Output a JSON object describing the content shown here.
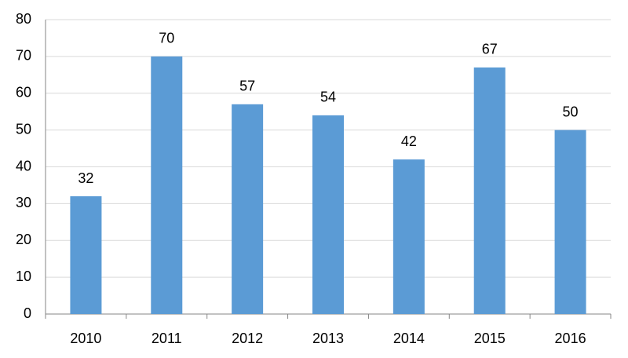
{
  "chart_data": {
    "type": "bar",
    "categories": [
      "2010",
      "2011",
      "2012",
      "2013",
      "2014",
      "2015",
      "2016"
    ],
    "values": [
      32,
      70,
      57,
      54,
      42,
      67,
      50
    ],
    "color": "#5b9bd5",
    "ylim": [
      0,
      80
    ],
    "yticks": [
      0,
      10,
      20,
      30,
      40,
      50,
      60,
      70,
      80
    ],
    "grid": true,
    "data_labels": true
  }
}
